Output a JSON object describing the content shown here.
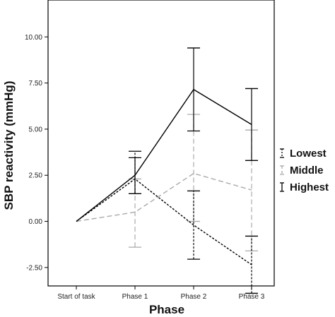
{
  "chart_data": {
    "type": "line",
    "xlabel": "Phase",
    "ylabel": "SBP reactivity (mmHg)",
    "categories": [
      "Start of task",
      "Phase 1",
      "Phase 2",
      "Phase 3"
    ],
    "ylim": [
      -3.5,
      12.0
    ],
    "yticks": [
      -2.5,
      0.0,
      2.5,
      5.0,
      7.5,
      10.0
    ],
    "ytick_labels": [
      "-2.50",
      "0.00",
      "2.50",
      "5.00",
      "7.50",
      "10.00"
    ],
    "grid": false,
    "legend_position": "right",
    "series": [
      {
        "name": "Lowest",
        "style": "dotted",
        "color": "#000000",
        "values": [
          0.0,
          2.3,
          -0.2,
          -2.35
        ],
        "error_low": [
          0.0,
          1.5,
          -2.05,
          -3.9
        ],
        "error_high": [
          0.0,
          3.8,
          1.65,
          -0.8
        ]
      },
      {
        "name": "Middle",
        "style": "dashed",
        "color": "#aaaaaa",
        "values": [
          0.0,
          0.5,
          2.6,
          1.7
        ],
        "error_low": [
          0.0,
          -1.4,
          0.0,
          -1.6
        ],
        "error_high": [
          0.0,
          2.3,
          5.8,
          4.95
        ]
      },
      {
        "name": "Highest",
        "style": "solid",
        "color": "#000000",
        "values": [
          0.0,
          2.5,
          7.15,
          5.25
        ],
        "error_low": [
          0.0,
          1.5,
          4.9,
          3.3
        ],
        "error_high": [
          0.0,
          3.45,
          9.4,
          7.2
        ]
      }
    ]
  }
}
